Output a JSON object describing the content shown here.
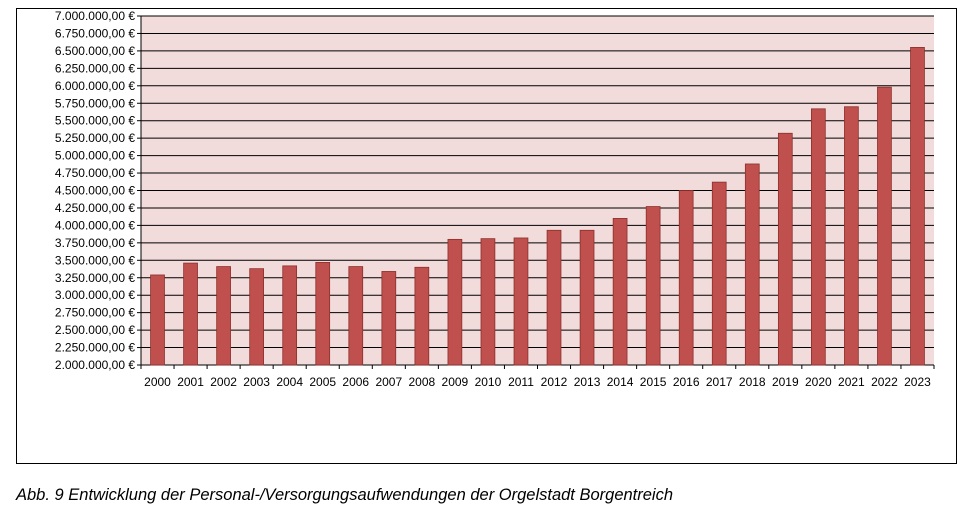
{
  "chart_data": {
    "type": "bar",
    "title": "",
    "xlabel": "",
    "ylabel": "",
    "ylim": [
      2000000,
      7000000
    ],
    "ytick_step": 250000,
    "grid": true,
    "legend": "none",
    "colors": {
      "bar_fill": "#c0504d",
      "bar_stroke": "#8b2f2c",
      "plot_background": "#f2dcdb",
      "gridline": "#000000"
    },
    "y_tick_labels": [
      "2.000.000,00 €",
      "2.250.000,00 €",
      "2.500.000,00 €",
      "2.750.000,00 €",
      "3.000.000,00 €",
      "3.250.000,00 €",
      "3.500.000,00 €",
      "3.750.000,00 €",
      "4.000.000,00 €",
      "4.250.000,00 €",
      "4.500.000,00 €",
      "4.750.000,00 €",
      "5.000.000,00 €",
      "5.250.000,00 €",
      "5.500.000,00 €",
      "5.750.000,00 €",
      "6.000.000,00 €",
      "6.250.000,00 €",
      "6.500.000,00 €",
      "6.750.000,00 €",
      "7.000.000,00 €"
    ],
    "categories": [
      "2000",
      "2001",
      "2002",
      "2003",
      "2004",
      "2005",
      "2006",
      "2007",
      "2008",
      "2009",
      "2010",
      "2011",
      "2012",
      "2013",
      "2014",
      "2015",
      "2016",
      "2017",
      "2018",
      "2019",
      "2020",
      "2021",
      "2022",
      "2023"
    ],
    "values": [
      3290000,
      3460000,
      3410000,
      3380000,
      3420000,
      3470000,
      3410000,
      3340000,
      3400000,
      3800000,
      3810000,
      3820000,
      3930000,
      3930000,
      4100000,
      4270000,
      4500000,
      4620000,
      4880000,
      5320000,
      5670000,
      5700000,
      5980000,
      6550000
    ]
  },
  "caption": "Abb. 9 Entwicklung der Personal-/Versorgungsaufwendungen der Orgelstadt Borgentreich"
}
